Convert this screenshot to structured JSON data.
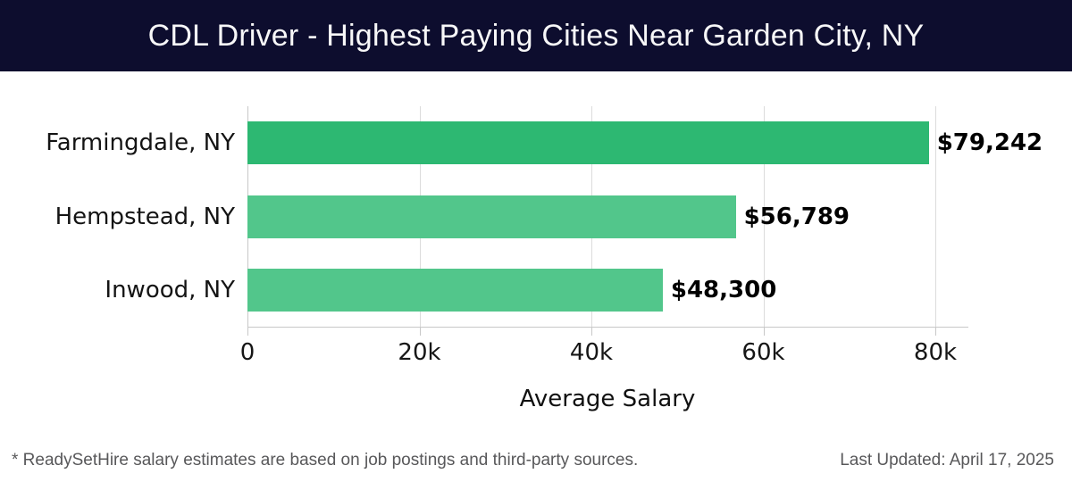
{
  "header": {
    "title": "CDL Driver - Highest Paying Cities Near Garden City, NY"
  },
  "chart_data": {
    "type": "bar",
    "orientation": "horizontal",
    "title": "CDL Driver - Highest Paying Cities Near Garden City, NY",
    "categories": [
      "Farmingdale, NY",
      "Hempstead, NY",
      "Inwood, NY"
    ],
    "values": [
      79242,
      56789,
      48300
    ],
    "value_labels": [
      "$79,242",
      "$56,789",
      "$48,300"
    ],
    "xlabel": "Average Salary",
    "ylabel": "",
    "xlim": [
      0,
      83740
    ],
    "xticks": [
      0,
      20000,
      40000,
      60000,
      80000
    ],
    "xtick_labels": [
      "0",
      "20k",
      "40k",
      "60k",
      "80k"
    ],
    "grid": true,
    "legend": "none",
    "bar_colors": [
      "#2db872",
      "#52c68b",
      "#52c68b"
    ]
  },
  "colors": {
    "header_background": "#0d0d2e",
    "header_text": "#f7f7f8",
    "highlight_bar": "#2db872",
    "regular_bar": "#52c68b",
    "gridline": "#dcdcdc",
    "axis_line": "#c8c8c8",
    "footer_text": "#58585a"
  },
  "footer": {
    "disclaimer": "* ReadySetHire salary estimates are based on job postings and third-party sources.",
    "last_updated": "Last Updated: April 17, 2025"
  }
}
